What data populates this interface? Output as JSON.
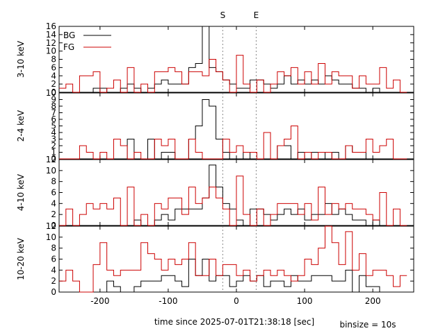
{
  "chart_data": {
    "type": "line",
    "step": true,
    "xlabel": "time since 2025-07-01T21:38:18 [sec]",
    "footnote": "binsize = 10s",
    "xlim": [
      -260,
      260
    ],
    "xticks": [
      -200,
      -100,
      0,
      100,
      200
    ],
    "markers": [
      {
        "label": "S",
        "x": -20
      },
      {
        "label": "E",
        "x": 29
      }
    ],
    "legend": {
      "position": "top-left",
      "entries": [
        {
          "label": "BG",
          "color": "#000000"
        },
        {
          "label": "FG",
          "color": "#cc0000"
        }
      ]
    },
    "x": [
      -260,
      -250,
      -240,
      -230,
      -220,
      -210,
      -200,
      -190,
      -180,
      -170,
      -160,
      -150,
      -140,
      -130,
      -120,
      -110,
      -100,
      -90,
      -80,
      -70,
      -60,
      -50,
      -40,
      -30,
      -20,
      -10,
      0,
      10,
      20,
      30,
      40,
      50,
      60,
      70,
      80,
      90,
      100,
      110,
      120,
      130,
      140,
      150,
      160,
      170,
      180,
      190,
      200,
      210,
      220,
      230,
      240
    ],
    "panels": [
      {
        "ylabel": "3-10 keV",
        "ylim": [
          0,
          16
        ],
        "yticks": [
          0,
          2,
          4,
          6,
          8,
          10,
          12,
          14,
          16
        ],
        "series": [
          {
            "name": "BG",
            "color": "#000000",
            "values": [
              0,
              0,
              0,
              0,
              0,
              1,
              1,
              0,
              0,
              1,
              2,
              1,
              0,
              1,
              2,
              3,
              2,
              2,
              2,
              6,
              7,
              16,
              6,
              5,
              3,
              2,
              1,
              1,
              3,
              3,
              2,
              1,
              2,
              4,
              2,
              3,
              2,
              3,
              2,
              4,
              3,
              2,
              2,
              1,
              1,
              0,
              1,
              0,
              0,
              0,
              0
            ]
          },
          {
            "name": "FG",
            "color": "#cc0000",
            "values": [
              1,
              2,
              0,
              4,
              4,
              5,
              0,
              1,
              3,
              0,
              6,
              0,
              2,
              0,
              5,
              5,
              6,
              5,
              2,
              5,
              5,
              4,
              8,
              5,
              3,
              0,
              9,
              2,
              0,
              3,
              0,
              2,
              5,
              4,
              6,
              2,
              5,
              2,
              7,
              2,
              5,
              4,
              4,
              1,
              4,
              2,
              2,
              6,
              1,
              3,
              0
            ]
          }
        ]
      },
      {
        "ylabel": "2-4 keV",
        "ylim": [
          0,
          10
        ],
        "yticks": [
          0,
          1,
          2,
          3,
          4,
          5,
          6,
          7,
          8,
          9,
          10
        ],
        "series": [
          {
            "name": "BG",
            "color": "#000000",
            "values": [
              0,
              0,
              0,
              0,
              0,
              0,
              0,
              0,
              0,
              0,
              3,
              0,
              0,
              3,
              0,
              1,
              1,
              0,
              0,
              3,
              5,
              9,
              8,
              3,
              1,
              0,
              0,
              1,
              0,
              0,
              0,
              0,
              2,
              2,
              0,
              1,
              0,
              1,
              1,
              0,
              1,
              0,
              2,
              1,
              1,
              0,
              0,
              0,
              0,
              0,
              0
            ]
          },
          {
            "name": "FG",
            "color": "#cc0000",
            "values": [
              0,
              0,
              0,
              2,
              1,
              0,
              1,
              0,
              3,
              2,
              0,
              1,
              0,
              0,
              3,
              2,
              3,
              0,
              0,
              3,
              1,
              0,
              0,
              0,
              3,
              1,
              2,
              1,
              1,
              0,
              4,
              0,
              2,
              3,
              5,
              0,
              1,
              0,
              1,
              1,
              0,
              0,
              2,
              1,
              1,
              3,
              1,
              2,
              3,
              0,
              0
            ]
          }
        ]
      },
      {
        "ylabel": "4-10 keV",
        "ylim": [
          0,
          12
        ],
        "yticks": [
          0,
          2,
          4,
          6,
          8,
          10,
          12
        ],
        "series": [
          {
            "name": "BG",
            "color": "#000000",
            "values": [
              0,
              0,
              0,
              0,
              0,
              0,
              0,
              0,
              0,
              0,
              0,
              1,
              0,
              0,
              1,
              2,
              1,
              3,
              3,
              3,
              3,
              5,
              11,
              7,
              4,
              3,
              1,
              0,
              3,
              3,
              2,
              1,
              2,
              3,
              2,
              3,
              1,
              2,
              2,
              4,
              2,
              3,
              2,
              1,
              1,
              0,
              1,
              0,
              0,
              0,
              0
            ]
          },
          {
            "name": "FG",
            "color": "#cc0000",
            "values": [
              0,
              3,
              0,
              2,
              4,
              3,
              4,
              3,
              5,
              0,
              7,
              0,
              2,
              0,
              4,
              3,
              5,
              5,
              2,
              7,
              4,
              5,
              7,
              5,
              3,
              0,
              9,
              2,
              0,
              3,
              0,
              2,
              4,
              4,
              4,
              2,
              4,
              1,
              7,
              2,
              4,
              3,
              4,
              3,
              3,
              2,
              1,
              6,
              0,
              3,
              0
            ]
          }
        ]
      },
      {
        "ylabel": "10-20 keV",
        "ylim": [
          0,
          12
        ],
        "yticks": [
          0,
          2,
          4,
          6,
          8,
          10,
          12
        ],
        "series": [
          {
            "name": "BG",
            "color": "#000000",
            "values": [
              0,
              0,
              0,
              0,
              0,
              0,
              0,
              2,
              1,
              0,
              0,
              1,
              2,
              2,
              2,
              3,
              3,
              2,
              1,
              6,
              3,
              6,
              2,
              3,
              3,
              1,
              2,
              3,
              2,
              3,
              1,
              2,
              2,
              1,
              3,
              2,
              2,
              3,
              3,
              3,
              2,
              2,
              4,
              0,
              3,
              1,
              1,
              0,
              0,
              0,
              0
            ]
          },
          {
            "name": "FG",
            "color": "#cc0000",
            "values": [
              2,
              4,
              2,
              0,
              0,
              5,
              9,
              4,
              3,
              4,
              4,
              4,
              9,
              7,
              6,
              4,
              6,
              5,
              6,
              9,
              3,
              3,
              6,
              3,
              5,
              5,
              3,
              4,
              2,
              3,
              4,
              3,
              4,
              3,
              2,
              3,
              6,
              5,
              8,
              12,
              9,
              5,
              11,
              4,
              7,
              3,
              4,
              4,
              3,
              1,
              3
            ]
          }
        ]
      }
    ]
  }
}
